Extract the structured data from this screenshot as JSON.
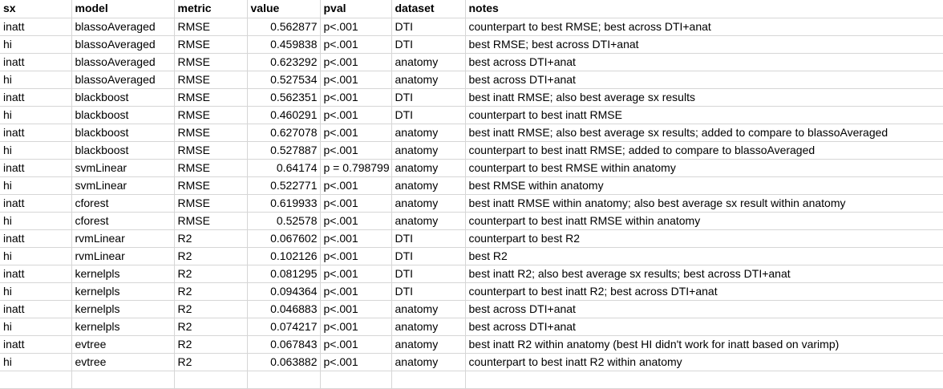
{
  "headers": [
    "sx",
    "model",
    "metric",
    "value",
    "pval",
    "dataset",
    "notes"
  ],
  "rows": [
    [
      "inatt",
      "blassoAveraged",
      "RMSE",
      "0.562877",
      "p<.001",
      "DTI",
      "counterpart to best RMSE; best across DTI+anat"
    ],
    [
      "hi",
      "blassoAveraged",
      "RMSE",
      "0.459838",
      "p<.001",
      "DTI",
      "best RMSE; best across DTI+anat"
    ],
    [
      "inatt",
      "blassoAveraged",
      "RMSE",
      "0.623292",
      "p<.001",
      "anatomy",
      "best across DTI+anat"
    ],
    [
      "hi",
      "blassoAveraged",
      "RMSE",
      "0.527534",
      "p<.001",
      "anatomy",
      "best across DTI+anat"
    ],
    [
      "inatt",
      "blackboost",
      "RMSE",
      "0.562351",
      "p<.001",
      "DTI",
      "best inatt RMSE; also best average sx results"
    ],
    [
      "hi",
      "blackboost",
      "RMSE",
      "0.460291",
      "p<.001",
      "DTI",
      "counterpart to best inatt RMSE"
    ],
    [
      "inatt",
      "blackboost",
      "RMSE",
      "0.627078",
      "p<.001",
      "anatomy",
      "best inatt RMSE; also best average sx results; added to compare to blassoAveraged"
    ],
    [
      "hi",
      "blackboost",
      "RMSE",
      "0.527887",
      "p<.001",
      "anatomy",
      "counterpart to best inatt RMSE; added to compare to blassoAveraged"
    ],
    [
      "inatt",
      "svmLinear",
      "RMSE",
      "0.64174",
      "p = 0.798799",
      "anatomy",
      "counterpart to best RMSE within anatomy"
    ],
    [
      "hi",
      "svmLinear",
      "RMSE",
      "0.522771",
      "p<.001",
      "anatomy",
      "best RMSE within anatomy"
    ],
    [
      "inatt",
      "cforest",
      "RMSE",
      "0.619933",
      "p<.001",
      "anatomy",
      "best inatt RMSE within anatomy; also best average sx result within anatomy"
    ],
    [
      "hi",
      "cforest",
      "RMSE",
      "0.52578",
      "p<.001",
      "anatomy",
      "counterpart to best inatt RMSE within anatomy"
    ],
    [
      "inatt",
      "rvmLinear",
      "R2",
      "0.067602",
      "p<.001",
      "DTI",
      "counterpart to best R2"
    ],
    [
      "hi",
      "rvmLinear",
      "R2",
      "0.102126",
      "p<.001",
      "DTI",
      "best R2"
    ],
    [
      "inatt",
      "kernelpls",
      "R2",
      "0.081295",
      "p<.001",
      "DTI",
      "best inatt R2; also best average sx results; best across DTI+anat"
    ],
    [
      "hi",
      "kernelpls",
      "R2",
      "0.094364",
      "p<.001",
      "DTI",
      "counterpart to best inatt R2; best across DTI+anat"
    ],
    [
      "inatt",
      "kernelpls",
      "R2",
      "0.046883",
      "p<.001",
      "anatomy",
      "best across DTI+anat"
    ],
    [
      "hi",
      "kernelpls",
      "R2",
      "0.074217",
      "p<.001",
      "anatomy",
      "best across DTI+anat"
    ],
    [
      "inatt",
      "evtree",
      "R2",
      "0.067843",
      "p<.001",
      "anatomy",
      "best inatt R2 within anatomy (best HI didn't work for inatt based on varimp)"
    ],
    [
      "hi",
      "evtree",
      "R2",
      "0.063882",
      "p<.001",
      "anatomy",
      "counterpart to best inatt R2 within anatomy"
    ]
  ]
}
